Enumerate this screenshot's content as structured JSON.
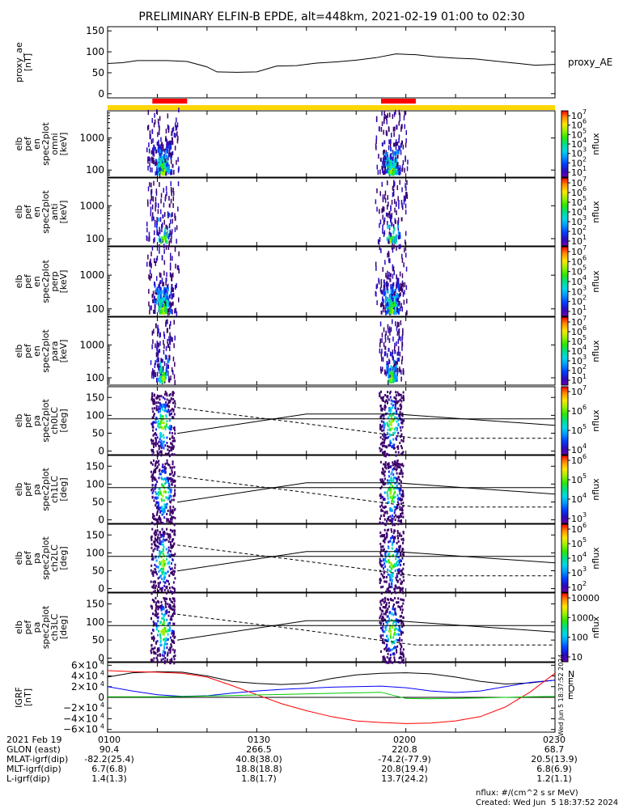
{
  "title": "PRELIMINARY ELFIN-B EPDE, alt=448km, 2021-02-19 01:00 to 02:30",
  "panels": [
    {
      "id": "proxy_ae",
      "ylabel_lines": [
        "proxy_ae",
        "[nT]"
      ],
      "legend": "proxy_AE",
      "yticks": [
        "150",
        "100",
        "50",
        "0"
      ]
    },
    {
      "id": "omni",
      "ylabel_lines": [
        "elb",
        "pef",
        "en",
        "spec2plot",
        "omni",
        "[keV]"
      ],
      "yticks": [
        "1000",
        "100"
      ],
      "cbar_ticks": [
        "10",
        "10",
        "10",
        "10",
        "10",
        "10",
        "10"
      ],
      "cbar_exps": [
        "7",
        "6",
        "5",
        "4",
        "3",
        "2",
        "1"
      ],
      "cbar_label": "nflux"
    },
    {
      "id": "anti",
      "ylabel_lines": [
        "elb",
        "pef",
        "en",
        "spec2plot",
        "anti",
        "[keV]"
      ],
      "yticks": [
        "1000",
        "100"
      ],
      "cbar_ticks": [
        "10",
        "10",
        "10",
        "10",
        "10",
        "10",
        "10"
      ],
      "cbar_exps": [
        "7",
        "6",
        "5",
        "4",
        "3",
        "2",
        "1"
      ],
      "cbar_label": "nflux"
    },
    {
      "id": "perp",
      "ylabel_lines": [
        "elb",
        "pef",
        "en",
        "spec2plot",
        "perp",
        "[keV]"
      ],
      "yticks": [
        "1000",
        "100"
      ],
      "cbar_ticks": [
        "10",
        "10",
        "10",
        "10",
        "10",
        "10",
        "10"
      ],
      "cbar_exps": [
        "7",
        "6",
        "5",
        "4",
        "3",
        "2",
        "1"
      ],
      "cbar_label": "nflux"
    },
    {
      "id": "para",
      "ylabel_lines": [
        "elb",
        "pef",
        "en",
        "spec2plot",
        "para",
        "[keV]"
      ],
      "yticks": [
        "1000",
        "100"
      ],
      "cbar_ticks": [
        "10",
        "10",
        "10",
        "10",
        "10",
        "10",
        "10"
      ],
      "cbar_exps": [
        "7",
        "6",
        "5",
        "4",
        "3",
        "2",
        "1"
      ],
      "cbar_label": "nflux"
    },
    {
      "id": "ch0LC",
      "ylabel_lines": [
        "elb",
        "pef",
        "pa",
        "spec2plot",
        "ch0LC",
        "[deg]"
      ],
      "yticks": [
        "150",
        "100",
        "50",
        "0"
      ],
      "cbar_ticks": [
        "10",
        "10",
        "10",
        "10"
      ],
      "cbar_exps": [
        "7",
        "6",
        "5",
        "4"
      ],
      "cbar_label": "nflux"
    },
    {
      "id": "ch1LC",
      "ylabel_lines": [
        "elb",
        "pef",
        "pa",
        "spec2plot",
        "ch1LC",
        "[deg]"
      ],
      "yticks": [
        "150",
        "100",
        "50",
        "0"
      ],
      "cbar_ticks": [
        "10",
        "10",
        "10",
        "10"
      ],
      "cbar_exps": [
        "6",
        "5",
        "4",
        "3"
      ],
      "cbar_label": "nflux"
    },
    {
      "id": "ch2LC",
      "ylabel_lines": [
        "elb",
        "pef",
        "pa",
        "spec2plot",
        "ch2LC",
        "[deg]"
      ],
      "yticks": [
        "150",
        "100",
        "50",
        "0"
      ],
      "cbar_ticks": [
        "10",
        "10",
        "10",
        "10",
        "10"
      ],
      "cbar_exps": [
        "6",
        "5",
        "4",
        "3",
        "2"
      ],
      "cbar_label": "nflux"
    },
    {
      "id": "ch3LC",
      "ylabel_lines": [
        "elb",
        "pef",
        "pa",
        "spec2plot",
        "ch3LC",
        "[deg]"
      ],
      "yticks": [
        "150",
        "100",
        "50",
        "0"
      ],
      "cbar_ticks": [
        "10000",
        "1000",
        "100",
        "10"
      ],
      "cbar_exps": [
        "",
        "",
        "",
        ""
      ],
      "cbar_label": "nflux"
    },
    {
      "id": "igrf",
      "ylabel_lines": [
        "IGRF",
        "[nT]"
      ],
      "yticks": [
        "6×10",
        "4×10",
        "2×10",
        "0",
        "−2×10",
        "−4×10",
        "−6×10"
      ],
      "ytick_exps": [
        "4",
        "4",
        "4",
        "",
        "4",
        "4",
        "4"
      ],
      "legend_letters": [
        "N",
        "E",
        "D",
        "E"
      ]
    }
  ],
  "sidebar_stamp": "Wed Jun  5 18:37:52 2024",
  "footer": {
    "rows": [
      {
        "label": "2021 Feb 19",
        "values": [
          "0100",
          "0130",
          "0200",
          "0230"
        ]
      },
      {
        "label": "GLON (east)",
        "values": [
          "90.4",
          "266.5",
          "220.8",
          "68.7"
        ]
      },
      {
        "label": "MLAT-igrf(dip)",
        "values": [
          "-82.2(25.4)",
          "40.8(38.0)",
          "-74.2(-77.9)",
          "20.5(13.9)"
        ]
      },
      {
        "label": "MLT-igrf(dip)",
        "values": [
          "6.7(6.8)",
          "18.8(18.8)",
          "20.8(19.4)",
          "6.8(6.9)"
        ]
      },
      {
        "label": "L-igrf(dip)",
        "values": [
          "1.4(1.3)",
          "1.8(1.7)",
          "13.7(24.2)",
          "1.2(1.1)"
        ]
      }
    ],
    "unit_note": "nflux: #/(cm^2 s sr MeV)",
    "created": "Created: Wed Jun  5 18:37:52 2024"
  },
  "colors": {
    "science_bar": "#ff0000",
    "orbit_bar": "#ffd700",
    "Bn": "#000000",
    "Be": "#0000ff",
    "Bd": "#ff0000",
    "Be2": "#00cc00"
  },
  "chart_data": {
    "type": "spectrogram",
    "time_range": [
      "01:00",
      "02:30"
    ],
    "science_zones": [
      [
        "01:09",
        "01:16"
      ],
      [
        "01:55",
        "02:02"
      ]
    ],
    "proxy_ae": {
      "t": [
        "01:00",
        "01:03",
        "01:06",
        "01:12",
        "01:16",
        "01:20",
        "01:22",
        "01:26",
        "01:30",
        "01:34",
        "01:38",
        "01:42",
        "01:46",
        "01:50",
        "01:54",
        "01:58",
        "02:02",
        "02:06",
        "02:10",
        "02:14",
        "02:18",
        "02:22",
        "02:26",
        "02:30"
      ],
      "v": [
        72,
        74,
        79,
        79,
        77,
        64,
        52,
        51,
        52,
        66,
        67,
        73,
        76,
        80,
        86,
        95,
        93,
        88,
        85,
        83,
        78,
        73,
        68,
        70
      ],
      "ylim": [
        -10,
        160
      ]
    },
    "energy_range_keV": [
      60,
      7000
    ],
    "pa_range_deg": [
      0,
      180
    ],
    "igrf": {
      "ylim": [
        -65000,
        65000
      ],
      "t": [
        "01:00",
        "01:05",
        "01:10",
        "01:15",
        "01:20",
        "01:25",
        "01:30",
        "01:35",
        "01:40",
        "01:45",
        "01:50",
        "01:55",
        "02:00",
        "02:05",
        "02:10",
        "02:15",
        "02:20",
        "02:25",
        "02:30"
      ],
      "N": [
        38000,
        46000,
        48000,
        47000,
        40000,
        30000,
        26000,
        24000,
        26000,
        35000,
        42000,
        45000,
        46000,
        44000,
        38000,
        30000,
        25000,
        27000,
        32000
      ],
      "E": [
        20000,
        12000,
        5000,
        2000,
        3000,
        8000,
        12000,
        15000,
        17000,
        19000,
        20000,
        21000,
        18000,
        12000,
        9000,
        12000,
        20000,
        28000,
        32000
      ],
      "D": [
        50000,
        48000,
        47000,
        45000,
        38000,
        22000,
        5000,
        -12000,
        -25000,
        -36000,
        -44000,
        -47000,
        -49000,
        -48000,
        -44000,
        -36000,
        -18000,
        10000,
        45000
      ],
      "E2": [
        1000,
        1000,
        1000,
        1500,
        2500,
        3500,
        4500,
        5500,
        6500,
        7500,
        8500,
        9500,
        -2000,
        -2500,
        -2000,
        -1000,
        0,
        1000,
        2000
      ]
    }
  }
}
